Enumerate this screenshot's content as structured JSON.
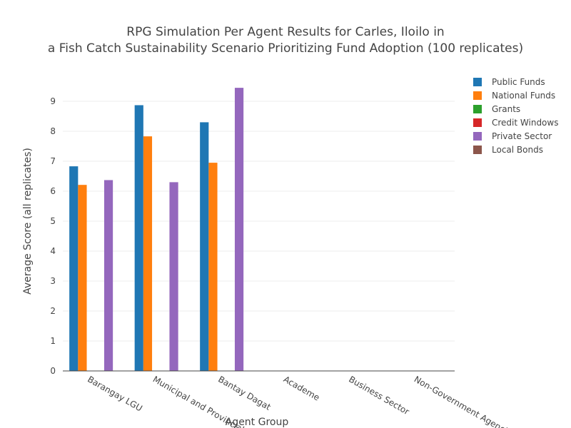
{
  "chart_data": {
    "type": "bar",
    "title_line1": "RPG Simulation Per Agent Results for Carles, Iloilo in",
    "title_line2": "a Fish Catch Sustainability Scenario Prioritizing Fund Adoption (100 replicates)",
    "xlabel": "Agent Group",
    "ylabel": "Average Score (all replicates)",
    "ylim": [
      0,
      10
    ],
    "yticks": [
      0,
      1,
      2,
      3,
      4,
      5,
      6,
      7,
      8,
      9
    ],
    "grid": true,
    "legend_position": "top-right",
    "categories": [
      "Barangay LGU",
      "Municipal and Provincial LGU",
      "Bantay Dagat",
      "Academe",
      "Business Sector",
      "Non-Government Agencies"
    ],
    "series": [
      {
        "name": "Public Funds",
        "color": "#1f77b4",
        "values": [
          6.83,
          8.87,
          8.3,
          null,
          null,
          null
        ]
      },
      {
        "name": "National Funds",
        "color": "#ff7f0e",
        "values": [
          6.21,
          7.83,
          6.95,
          null,
          null,
          null
        ]
      },
      {
        "name": "Grants",
        "color": "#2ca02c",
        "values": [
          null,
          null,
          null,
          null,
          null,
          null
        ]
      },
      {
        "name": "Credit Windows",
        "color": "#d62728",
        "values": [
          null,
          null,
          null,
          null,
          null,
          null
        ]
      },
      {
        "name": "Private Sector",
        "color": "#9467bd",
        "values": [
          6.37,
          6.3,
          9.45,
          null,
          null,
          null
        ]
      },
      {
        "name": "Local Bonds",
        "color": "#8c564b",
        "values": [
          null,
          null,
          null,
          null,
          null,
          null
        ]
      }
    ]
  }
}
